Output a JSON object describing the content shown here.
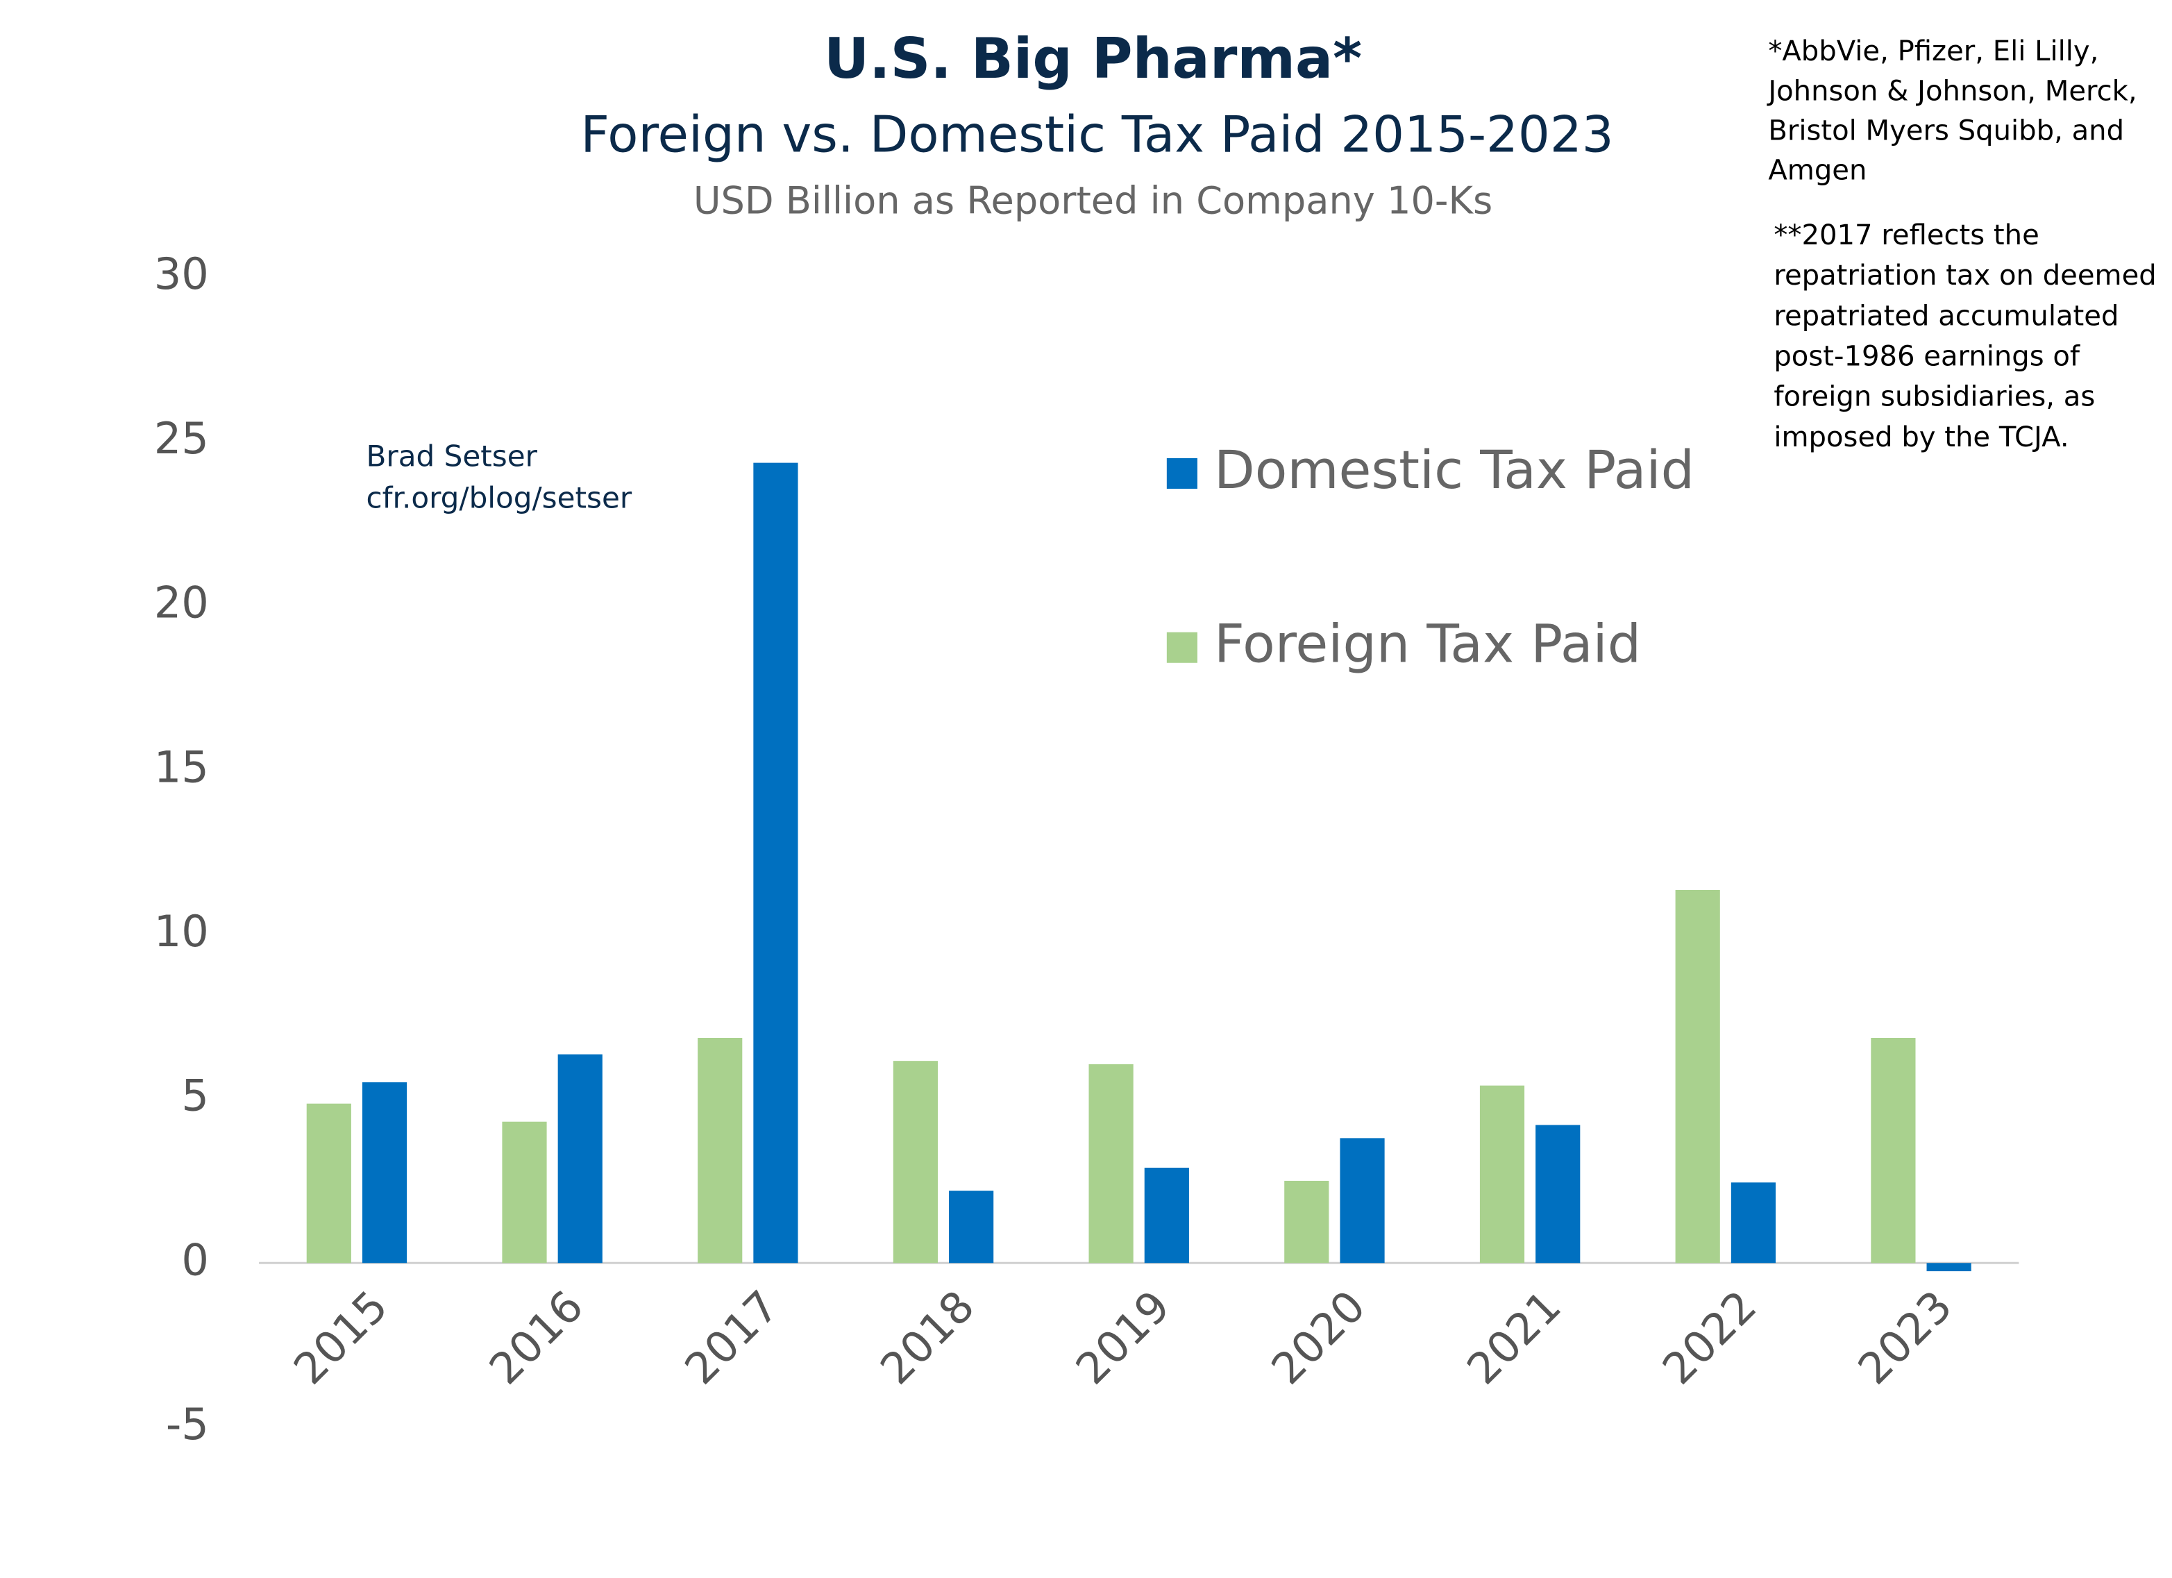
{
  "chart_data": {
    "type": "bar",
    "title": "U.S. Big Pharma*",
    "subtitle": "Foreign vs. Domestic Tax Paid 2015-2023",
    "units_note": "USD Billion as Reported in Company 10-Ks",
    "note_companies": [
      "*AbbVie, Pfizer, Eli Lilly,",
      "Johnson & Johnson, Merck,",
      "Bristol Myers Squibb, and",
      "Amgen"
    ],
    "note_2017": [
      "**2017 reflects the",
      "repatriation tax on deemed",
      "repatriated accumulated",
      "post-1986 earnings of",
      "foreign subsidiaries, as",
      "imposed by the TCJA."
    ],
    "source": [
      "Brad Setser",
      "cfr.org/blog/setser"
    ],
    "categories": [
      "2015",
      "2016",
      "2017",
      "2018",
      "2019",
      "2020",
      "2021",
      "2022",
      "2023"
    ],
    "series": [
      {
        "name": "Foreign Tax Paid",
        "color": "#a9d18e",
        "values": [
          4.85,
          4.3,
          6.85,
          6.15,
          6.05,
          2.5,
          5.4,
          11.35,
          6.85
        ]
      },
      {
        "name": "Domestic Tax Paid",
        "color": "#0070c0",
        "values": [
          5.5,
          6.35,
          24.35,
          2.2,
          2.9,
          3.8,
          4.2,
          2.45,
          -0.25
        ]
      }
    ],
    "ylim": [
      -5,
      30
    ],
    "yticks": [
      -5,
      0,
      5,
      10,
      15,
      20,
      25,
      30
    ],
    "grid": false
  }
}
